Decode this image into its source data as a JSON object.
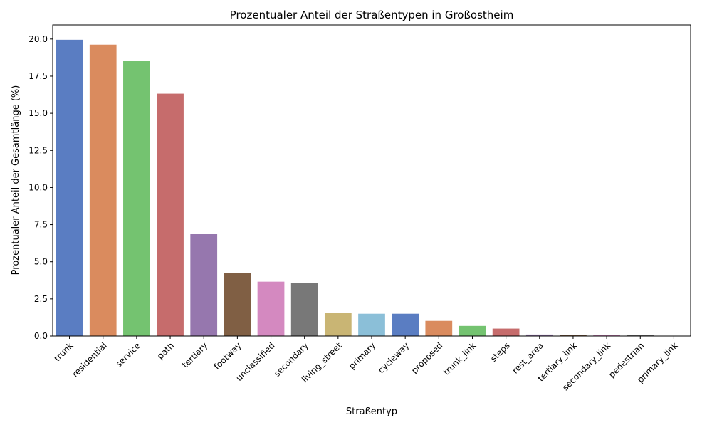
{
  "chart_data": {
    "type": "bar",
    "title": "Prozentualer Anteil der Straßentypen in Großostheim",
    "xlabel": "Straßentyp",
    "ylabel": "Prozentualer Anteil der Gesamtlänge (%)",
    "ylim": [
      0,
      20.95
    ],
    "yticks": [
      "0.0",
      "2.5",
      "5.0",
      "7.5",
      "10.0",
      "12.5",
      "15.0",
      "17.5",
      "20.0"
    ],
    "grid": false,
    "categories": [
      "trunk",
      "residential",
      "service",
      "path",
      "tertiary",
      "footway",
      "unclassified",
      "secondary",
      "living_street",
      "primary",
      "cycleway",
      "proposed",
      "trunk_link",
      "steps",
      "rest_area",
      "tertiary_link",
      "secondary_link",
      "pedestrian",
      "primary_link"
    ],
    "values": [
      19.95,
      19.62,
      18.52,
      16.32,
      6.88,
      4.24,
      3.66,
      3.56,
      1.55,
      1.5,
      1.5,
      1.02,
      0.68,
      0.5,
      0.1,
      0.06,
      0.05,
      0.05,
      0.02
    ],
    "colors": [
      "#5a7dc2",
      "#da8b5e",
      "#74c370",
      "#c66c6c",
      "#9677ae",
      "#805f44",
      "#d489c0",
      "#787878",
      "#c9b574",
      "#8bbfd8",
      "#5a7dc2",
      "#da8b5e",
      "#74c370",
      "#c66c6c",
      "#9677ae",
      "#805f44",
      "#d489c0",
      "#787878",
      "#c9b574"
    ]
  }
}
